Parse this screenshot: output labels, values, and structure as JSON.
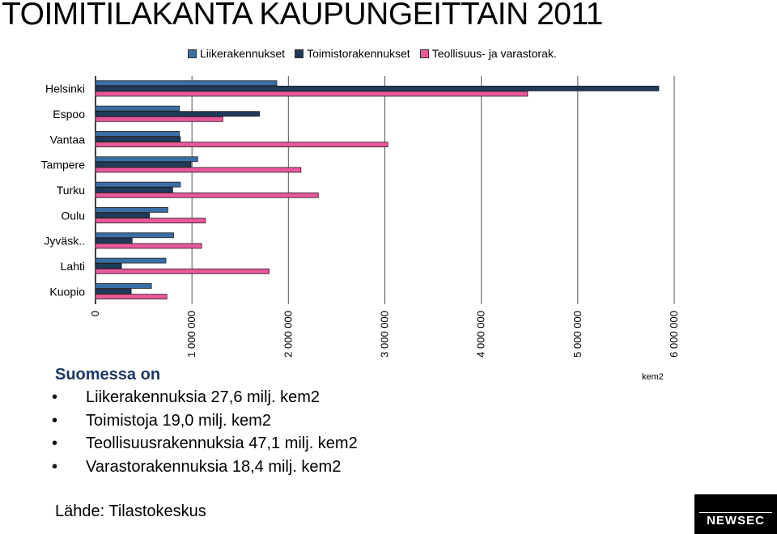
{
  "title": "TOIMITILAKANTA KAUPUNGEITTAIN 2011",
  "unit_label": "kem2",
  "summary": {
    "heading": "Suomessa on",
    "items": [
      "Liikerakennuksia 27,6 milj. kem2",
      "Toimistoja 19,0 milj. kem2",
      "Teollisuusrakennuksia 47,1 milj. kem2",
      "Varastorakennuksia 18,4 milj. kem2"
    ]
  },
  "source": "Lähde: Tilastokeskus",
  "logo": "NEWSEC",
  "colors": {
    "liike": "#3a6ea5",
    "toimisto": "#1f3a5a",
    "teollisuus": "#e8589a",
    "grid": "#555555"
  },
  "chart_data": {
    "type": "bar",
    "orientation": "horizontal",
    "categories": [
      "Helsinki",
      "Espoo",
      "Vantaa",
      "Tampere",
      "Turku",
      "Oulu",
      "Jyväsk..",
      "Lahti",
      "Kuopio"
    ],
    "series": [
      {
        "name": "Liikerakennukset",
        "values": [
          1880000,
          870000,
          870000,
          1060000,
          880000,
          750000,
          810000,
          730000,
          580000
        ]
      },
      {
        "name": "Toimistorakennukset",
        "values": [
          5840000,
          1700000,
          880000,
          990000,
          800000,
          560000,
          380000,
          270000,
          370000
        ]
      },
      {
        "name": "Teollisuus- ja varastorak.",
        "values": [
          4480000,
          1320000,
          3030000,
          2130000,
          2310000,
          1140000,
          1100000,
          1800000,
          740000
        ]
      }
    ],
    "ticks": [
      "0",
      "1 000 000",
      "2 000 000",
      "3 000 000",
      "4 000 000",
      "5 000 000",
      "6 000 000"
    ],
    "xlim": [
      0,
      6000000
    ],
    "grid": true,
    "legend_position": "top"
  }
}
